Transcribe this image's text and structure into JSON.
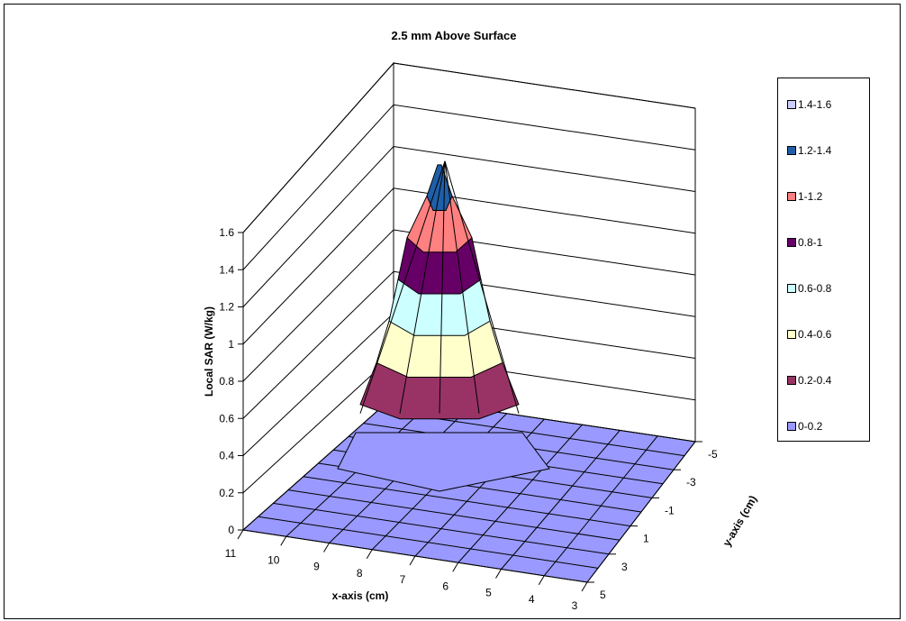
{
  "chart_data": {
    "type": "surface",
    "title": "2.5 mm Above Surface",
    "xlabel": "x-axis (cm)",
    "ylabel": "y-axis (cm)",
    "zlabel": "Local SAR (W/kg)",
    "x_ticks": [
      "11",
      "10",
      "9",
      "8",
      "7",
      "6",
      "5",
      "4",
      "3"
    ],
    "y_ticks": [
      "-5",
      "-3",
      "-1",
      "1",
      "3",
      "5"
    ],
    "z_ticks": [
      "0",
      "0.2",
      "0.4",
      "0.6",
      "0.8",
      "1",
      "1.2",
      "1.4",
      "1.6"
    ],
    "zlim": [
      0,
      1.6
    ],
    "peak_value": 1.35,
    "grid": true,
    "legend_position": "right",
    "bands": [
      {
        "label": "1.4-1.6",
        "color": "#ccccff"
      },
      {
        "label": "1.2-1.4",
        "color": "#1f5fa8"
      },
      {
        "label": "1-1.2",
        "color": "#ff8080"
      },
      {
        "label": "0.8-1",
        "color": "#660066"
      },
      {
        "label": "0.6-0.8",
        "color": "#ccffff"
      },
      {
        "label": "0.4-0.6",
        "color": "#ffffcc"
      },
      {
        "label": "0.2-0.4",
        "color": "#993366"
      },
      {
        "label": "0-0.2",
        "color": "#9999ff"
      }
    ]
  }
}
